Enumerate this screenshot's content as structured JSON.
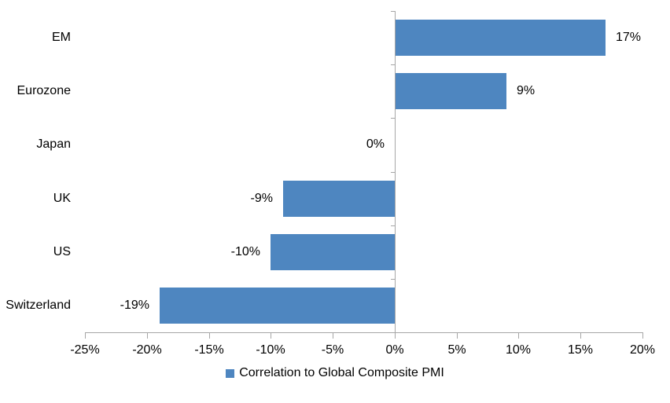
{
  "chart_data": {
    "type": "bar",
    "orientation": "horizontal",
    "title": "",
    "xlabel": "",
    "ylabel": "",
    "categories": [
      "EM",
      "Eurozone",
      "Japan",
      "UK",
      "US",
      "Switzerland"
    ],
    "values": [
      17,
      9,
      0,
      -9,
      -10,
      -19
    ],
    "value_labels": [
      "17%",
      "9%",
      "0%",
      "-9%",
      "-10%",
      "-19%"
    ],
    "xlim": [
      -25,
      20
    ],
    "x_ticks": [
      -25,
      -20,
      -15,
      -10,
      -5,
      0,
      5,
      10,
      15,
      20
    ],
    "x_tick_labels": [
      "-25%",
      "-20%",
      "-15%",
      "-10%",
      "-5%",
      "0%",
      "5%",
      "10%",
      "15%",
      "20%"
    ],
    "grid": false,
    "legend": {
      "position": "bottom-center",
      "entries": [
        {
          "label": "Correlation to Global Composite PMI",
          "color": "#4E86C0"
        }
      ]
    },
    "colors": {
      "bar": "#4E86C0",
      "axis": "#A6A6A6",
      "text": "#000000",
      "background": "#FFFFFF"
    }
  }
}
